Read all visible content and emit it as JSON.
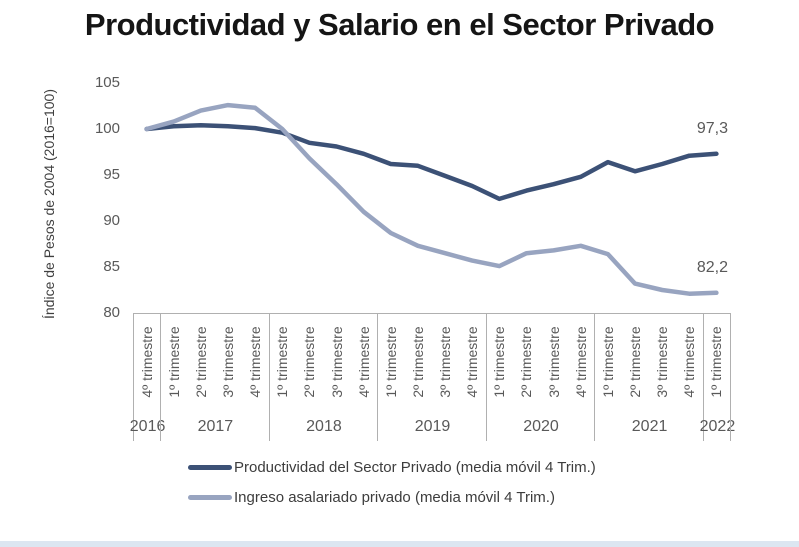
{
  "title": "Productividad y Salario en el Sector Privado",
  "colors": {
    "series_dark": "#3c5176",
    "series_light": "#98a4c0",
    "axis_text": "#595959",
    "border": "#b0b0b0",
    "title_text": "#151515",
    "bottom_strip": "#dce6f1",
    "background": "#ffffff"
  },
  "chart_data": {
    "type": "line",
    "title": "Productividad y Salario en el Sector Privado",
    "xlabel": "",
    "ylabel": "Índice de Pesos de 2004 (2016=100)",
    "ylim": [
      80,
      105
    ],
    "yticks": [
      105,
      100,
      95,
      90,
      85,
      80
    ],
    "grid": false,
    "legend_position": "bottom",
    "x_tick_labels": [
      "4º trimestre",
      "1º trimestre",
      "2º trimestre",
      "3º trimestre",
      "4º trimestre",
      "1º trimestre",
      "2º trimestre",
      "3º trimestre",
      "4º trimestre",
      "1º trimestre",
      "2º trimestre",
      "3º trimestre",
      "4º trimestre",
      "1º trimestre",
      "2º trimestre",
      "3º trimestre",
      "4º trimestre",
      "1º trimestre",
      "2º trimestre",
      "3º trimestre",
      "4º trimestre",
      "1º trimestre"
    ],
    "x_year_groups": [
      {
        "label": "2016",
        "quarters": 1
      },
      {
        "label": "2017",
        "quarters": 4
      },
      {
        "label": "2018",
        "quarters": 4
      },
      {
        "label": "2019",
        "quarters": 4
      },
      {
        "label": "2020",
        "quarters": 4
      },
      {
        "label": "2021",
        "quarters": 4
      },
      {
        "label": "2022",
        "quarters": 1
      }
    ],
    "series": [
      {
        "name": "Productividad del Sector Privado (media móvil 4 Trim.)",
        "color": "#3c5176",
        "end_label": "97,3",
        "values": [
          100.0,
          100.3,
          100.4,
          100.3,
          100.1,
          99.6,
          98.5,
          98.1,
          97.3,
          96.2,
          96.0,
          94.9,
          93.8,
          92.4,
          93.3,
          94.0,
          94.8,
          96.4,
          95.4,
          96.2,
          97.1,
          97.3
        ]
      },
      {
        "name": "Ingreso asalariado privado (media móvil 4 Trim.)",
        "color": "#98a4c0",
        "end_label": "82,2",
        "values": [
          100.0,
          100.8,
          102.0,
          102.6,
          102.3,
          100.0,
          96.8,
          94.0,
          91.0,
          88.7,
          87.3,
          86.5,
          85.7,
          85.1,
          86.5,
          86.8,
          87.3,
          86.4,
          83.2,
          82.5,
          82.1,
          82.2
        ]
      }
    ]
  }
}
